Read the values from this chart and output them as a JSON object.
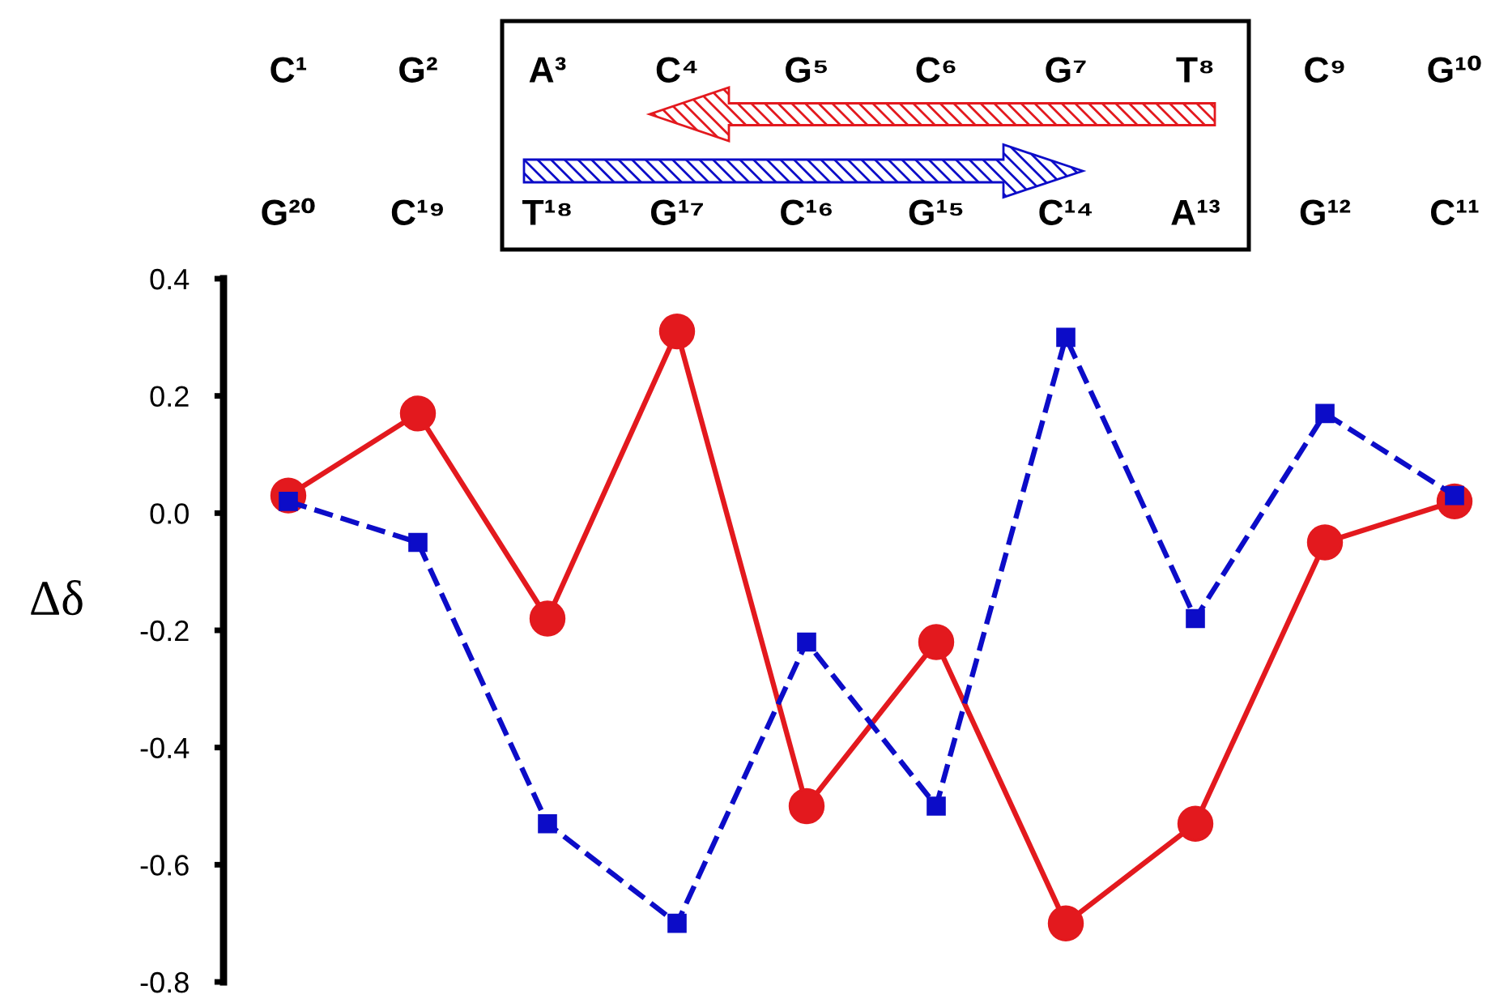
{
  "chart_data": {
    "type": "line",
    "ylabel": "Δδ",
    "categories": [
      "C¹",
      "G²",
      "A³",
      "C⁴",
      "G⁵",
      "C⁶",
      "G⁷",
      "T⁸",
      "C⁹",
      "G¹⁰"
    ],
    "annotations": [
      "G²⁰",
      "C¹⁹",
      "T¹⁸",
      "G¹⁷",
      "C¹⁶",
      "G¹⁵",
      "C¹⁴",
      "A¹³",
      "G¹²",
      "C¹¹"
    ],
    "ylim": [
      -0.8,
      0.4
    ],
    "yticks": [
      0.4,
      0.2,
      {
        "value": 0,
        "label": "0.0"
      },
      -0.2,
      -0.4,
      -0.6,
      -0.8
    ],
    "series": [
      {
        "color": "#e3191e",
        "marker": "circle",
        "line_style": "solid",
        "values": [
          0.03,
          0.17,
          -0.18,
          0.31,
          -0.5,
          -0.22,
          -0.7,
          -0.53,
          -0.05,
          0.02
        ]
      },
      {
        "color": "#0c0cc8",
        "marker": "square",
        "line_style": "dashed",
        "values": [
          0.02,
          -0.05,
          -0.53,
          -0.7,
          -0.22,
          -0.5,
          0.3,
          -0.18,
          0.17,
          0.03
        ]
      }
    ]
  }
}
